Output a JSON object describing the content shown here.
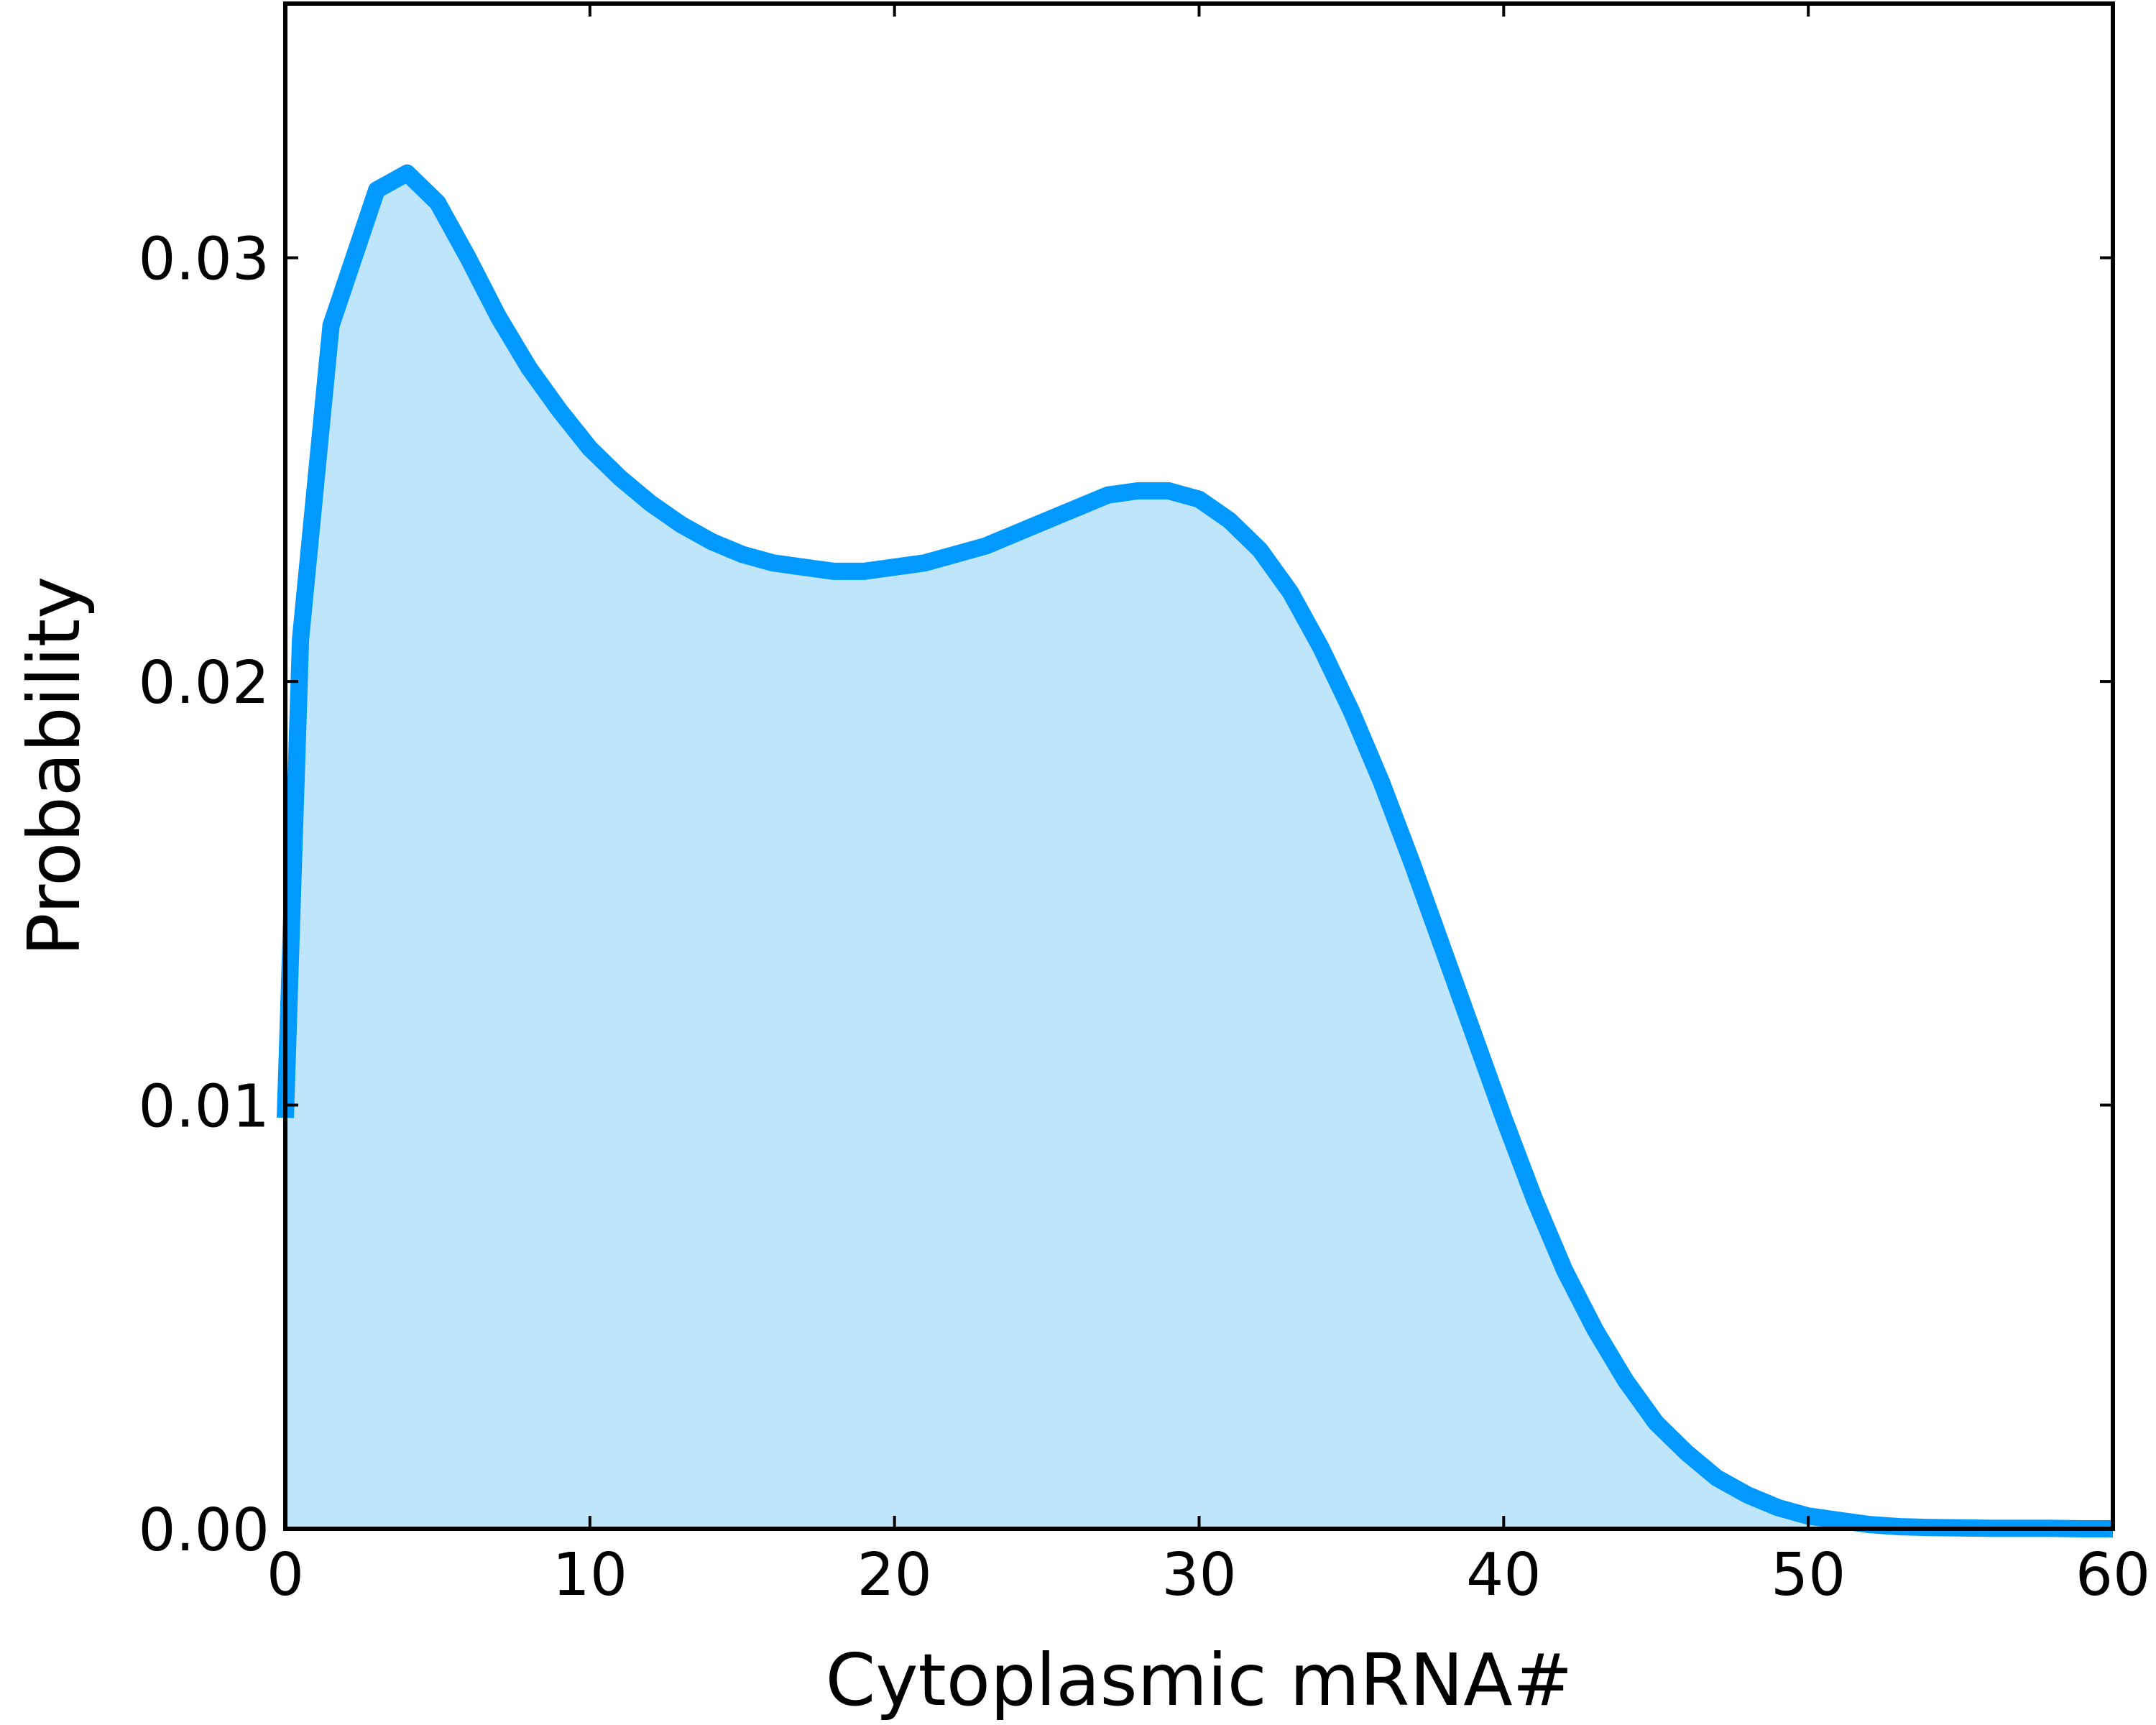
{
  "chart_data": {
    "type": "area",
    "xlabel": "Cytoplasmic mRNA#",
    "ylabel": "Probability",
    "xlim": [
      0,
      60
    ],
    "ylim": [
      0,
      0.036
    ],
    "xticks": [
      0,
      10,
      20,
      30,
      40,
      50,
      60
    ],
    "xtick_labels": [
      "0",
      "10",
      "20",
      "30",
      "40",
      "50",
      "60"
    ],
    "yticks": [
      0,
      0.01,
      0.02,
      0.03
    ],
    "ytick_labels": [
      "0.00",
      "0.01",
      "0.02",
      "0.03"
    ],
    "grid": false,
    "series": [
      {
        "line_color": "#0099ff",
        "fill_color": "#bfe5fa",
        "x": [
          0,
          0.5,
          1.5,
          3,
          4,
          5,
          6,
          7,
          8,
          9,
          10,
          11,
          12,
          13,
          14,
          15,
          16,
          17,
          18,
          19,
          20,
          21,
          22,
          23,
          24,
          25,
          26,
          27,
          28,
          29,
          30,
          31,
          32,
          33,
          34,
          35,
          36,
          37,
          38,
          39,
          40,
          41,
          42,
          43,
          44,
          45,
          46,
          47,
          48,
          49,
          50,
          51,
          52,
          53,
          54,
          55,
          56,
          57,
          58,
          59,
          60
        ],
        "y": [
          0.0097,
          0.021,
          0.0284,
          0.0316,
          0.032,
          0.0313,
          0.03,
          0.0286,
          0.0274,
          0.0264,
          0.0255,
          0.0248,
          0.0242,
          0.0237,
          0.0233,
          0.023,
          0.0228,
          0.0227,
          0.0226,
          0.0226,
          0.0227,
          0.0228,
          0.023,
          0.0232,
          0.0235,
          0.0238,
          0.0241,
          0.0244,
          0.0245,
          0.0245,
          0.0243,
          0.0238,
          0.0231,
          0.0221,
          0.0208,
          0.0193,
          0.0176,
          0.0157,
          0.0137,
          0.0117,
          0.0097,
          0.0078,
          0.0061,
          0.0047,
          0.0035,
          0.0025,
          0.0018,
          0.0012,
          0.0008,
          0.0005,
          0.0003,
          0.0002,
          0.0001,
          5e-05,
          3e-05,
          2e-05,
          1e-05,
          1e-05,
          1e-05,
          0.0,
          0.0
        ]
      }
    ]
  }
}
